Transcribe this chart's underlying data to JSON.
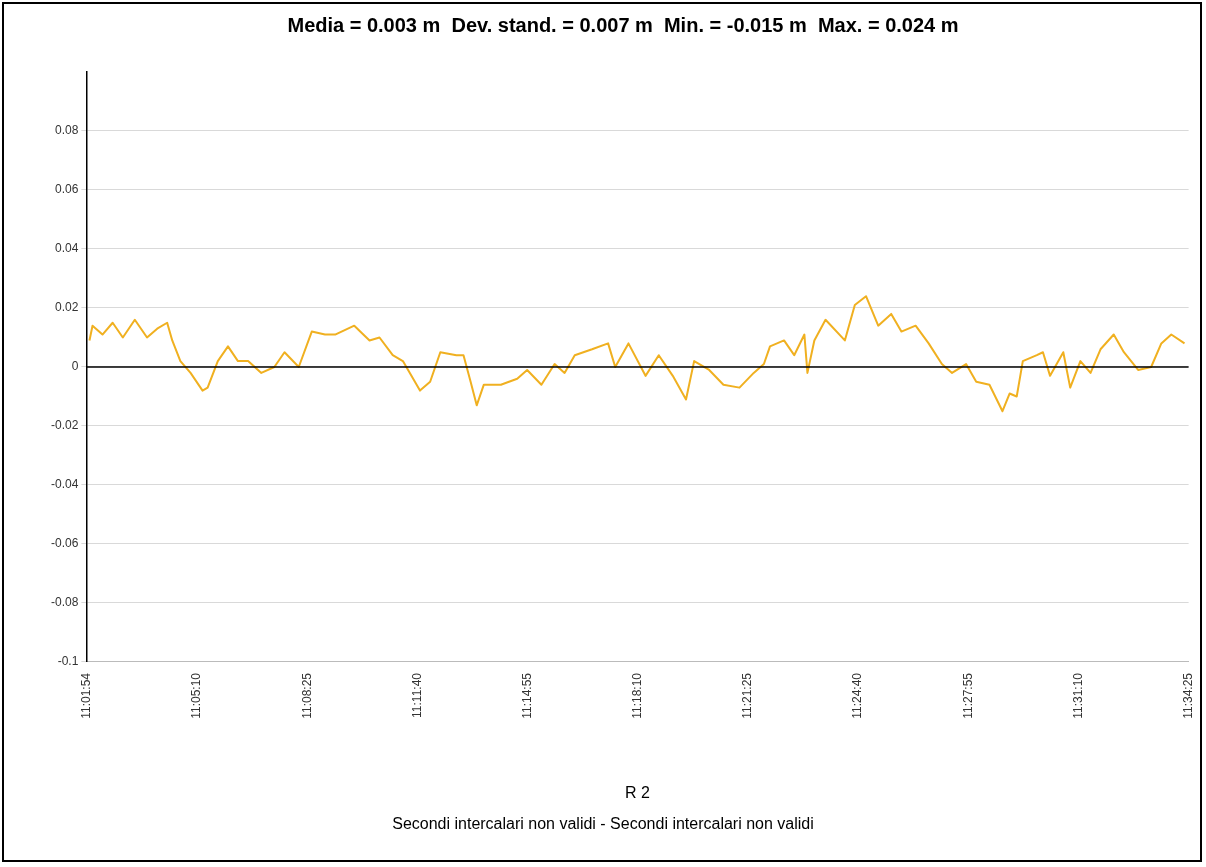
{
  "chart_data": {
    "type": "line",
    "title": "Media = 0.003 m  Dev. stand. = 0.007 m  Min. = -0.015 m  Max. = 0.024 m",
    "xlabel": "R 2",
    "annotations": [
      "Secondi intercalari non validi - Secondi intercalari non validi"
    ],
    "x": [
      11.0332,
      11.0347,
      11.0396,
      11.0446,
      11.0496,
      11.0555,
      11.0615,
      11.0665,
      11.0714,
      11.0739,
      11.0779,
      11.0829,
      11.0888,
      11.0913,
      11.0963,
      11.1013,
      11.1062,
      11.1112,
      11.1177,
      11.1241,
      11.1291,
      11.1361,
      11.1425,
      11.149,
      11.154,
      11.1634,
      11.1709,
      11.1758,
      11.1823,
      11.1873,
      11.1957,
      11.2007,
      11.2057,
      11.2136,
      11.2171,
      11.2206,
      11.2236,
      11.2271,
      11.2355,
      11.2435,
      11.2484,
      11.2554,
      11.2619,
      11.2668,
      11.2718,
      11.2803,
      11.2882,
      11.2917,
      11.2982,
      11.3066,
      11.3131,
      11.32,
      11.3265,
      11.3305,
      11.3379,
      11.3449,
      11.3528,
      11.3598,
      11.3648,
      11.3678,
      11.3747,
      11.3797,
      11.3847,
      11.3862,
      11.3896,
      11.3951,
      11.4046,
      11.4095,
      11.415,
      11.421,
      11.4274,
      11.4324,
      11.4394,
      11.4458,
      11.4523,
      11.4573,
      11.4642,
      11.4692,
      11.4757,
      11.4821,
      11.4856,
      11.4891,
      11.4921,
      11.499,
      11.502,
      11.5055,
      11.512,
      11.5154,
      11.5204,
      11.5254,
      11.5303,
      11.5368,
      11.5418,
      11.5488,
      11.5552,
      11.5602,
      11.5651,
      11.5716
    ],
    "series": [
      {
        "color": "#f0b020",
        "values": [
          0.009,
          0.014,
          0.011,
          0.015,
          0.01,
          0.016,
          0.01,
          0.013,
          0.015,
          0.009,
          0.002,
          -0.002,
          -0.008,
          -0.007,
          0.002,
          0.007,
          0.002,
          0.002,
          -0.002,
          0,
          0.005,
          0,
          0.012,
          0.011,
          0.011,
          0.014,
          0.009,
          0.01,
          0.004,
          0.002,
          -0.008,
          -0.005,
          0.005,
          0.004,
          0.004,
          -0.005,
          -0.013,
          -0.006,
          -0.006,
          -0.004,
          -0.001,
          -0.006,
          0.001,
          -0.002,
          0.004,
          0.006,
          0.008,
          0,
          0.008,
          -0.003,
          0.004,
          -0.003,
          -0.011,
          0.002,
          -0.001,
          -0.006,
          -0.007,
          -0.002,
          0.001,
          0.007,
          0.009,
          0.004,
          0.011,
          -0.002,
          0.009,
          0.016,
          0.009,
          0.021,
          0.024,
          0.014,
          0.018,
          0.012,
          0.014,
          0.008,
          0.001,
          -0.002,
          0.001,
          -0.005,
          -0.006,
          -0.015,
          -0.009,
          -0.01,
          0.002,
          0.004,
          0.005,
          -0.003,
          0.005,
          -0.007,
          0.002,
          -0.002,
          0.006,
          0.011,
          0.005,
          -0.001,
          0,
          0.008,
          0.011,
          0.008
        ]
      }
    ],
    "xlim": [
      11.031667,
      11.573611
    ],
    "xticks": [
      {
        "value": 11.031667,
        "label": "11:01:54"
      },
      {
        "value": 11.086111,
        "label": "11:05:10"
      },
      {
        "value": 11.140278,
        "label": "11:08:25"
      },
      {
        "value": 11.194444,
        "label": "11:11:40"
      },
      {
        "value": 11.248611,
        "label": "11:14:55"
      },
      {
        "value": 11.302778,
        "label": "11:18:10"
      },
      {
        "value": 11.356944,
        "label": "11:21:25"
      },
      {
        "value": 11.411111,
        "label": "11:24:40"
      },
      {
        "value": 11.465278,
        "label": "11:27:55"
      },
      {
        "value": 11.519444,
        "label": "11:31:10"
      },
      {
        "value": 11.573611,
        "label": "11:34:25"
      }
    ],
    "ylim": [
      -0.1,
      0.1
    ],
    "yticks": [
      -0.1,
      -0.08,
      -0.06,
      -0.04,
      -0.02,
      0,
      0.02,
      0.04,
      0.06,
      0.08
    ],
    "ref_lines": [
      {
        "axis": "y",
        "value": 0,
        "color": "#000000"
      }
    ],
    "grid": "y",
    "legend": false,
    "marker": "none",
    "line_style": "solid"
  }
}
